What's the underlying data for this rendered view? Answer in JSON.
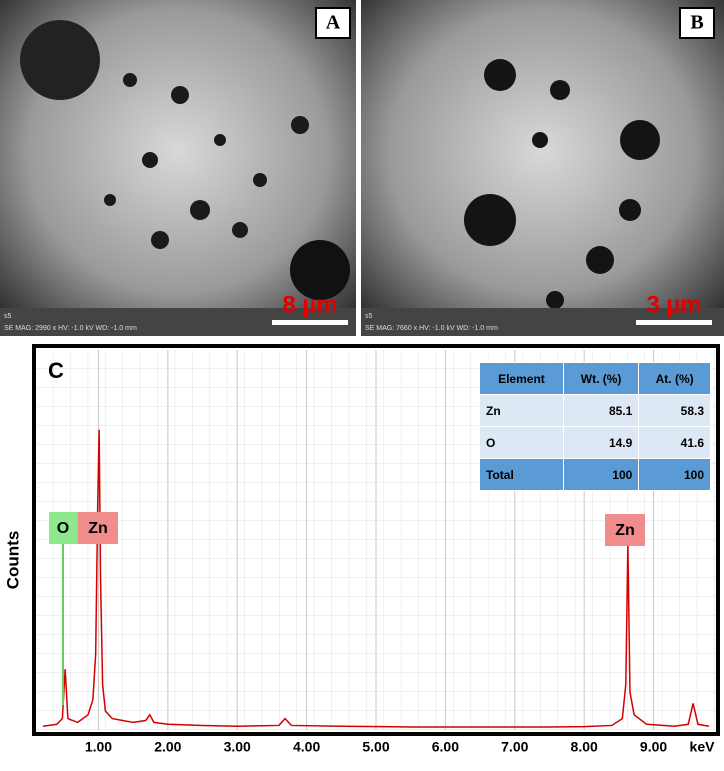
{
  "images": [
    {
      "label": "A",
      "scale": "8 µm",
      "sample": "s5",
      "info": "SE  MAG: 2990 x  HV: -1.0 kV  WD: -1.0 mm"
    },
    {
      "label": "B",
      "scale": "3 µm",
      "sample": "s5",
      "info": "SE  MAG: 7660 x  HV: -1.0 kV  WD: -1.0 mm"
    }
  ],
  "chart_data": {
    "type": "line",
    "panel": "C",
    "x_label": "keV",
    "y_label": "Counts",
    "x": [
      0.2,
      0.4,
      0.48,
      0.52,
      0.56,
      0.7,
      0.85,
      0.92,
      0.96,
      0.99,
      1.01,
      1.03,
      1.06,
      1.1,
      1.2,
      1.5,
      1.68,
      1.74,
      1.8,
      2.0,
      2.5,
      3.0,
      3.6,
      3.69,
      3.78,
      4.5,
      5.5,
      6.5,
      7.5,
      8.0,
      8.4,
      8.55,
      8.6,
      8.63,
      8.66,
      8.72,
      8.9,
      9.3,
      9.5,
      9.57,
      9.64,
      9.8
    ],
    "series": [
      {
        "color": "#d40000",
        "values": [
          1,
          1.5,
          3,
          16,
          3,
          2,
          4,
          8,
          20,
          60,
          79,
          40,
          12,
          5,
          3,
          2,
          2.5,
          4,
          2,
          1.5,
          1.2,
          1,
          1.2,
          3,
          1.2,
          1,
          0.8,
          0.8,
          0.8,
          0.9,
          1.2,
          3,
          12,
          49,
          10,
          4,
          1.5,
          1,
          1.5,
          7,
          1.5,
          1
        ]
      }
    ],
    "xlim": [
      0.1,
      9.9
    ],
    "ylim": [
      0,
      100
    ],
    "xticks": [
      {
        "value": 1,
        "label": "1.00"
      },
      {
        "value": 2,
        "label": "2.00"
      },
      {
        "value": 3,
        "label": "3.00"
      },
      {
        "value": 4,
        "label": "4.00"
      },
      {
        "value": 5,
        "label": "5.00"
      },
      {
        "value": 6,
        "label": "6.00"
      },
      {
        "value": 7,
        "label": "7.00"
      },
      {
        "value": 8,
        "label": "8.00"
      },
      {
        "value": 9,
        "label": "9.00"
      }
    ],
    "grid": true,
    "annotations": [
      "O",
      "Zn",
      "Zn"
    ],
    "table": {
      "header": [
        "Element",
        "Wt. (%)",
        "At. (%)"
      ],
      "rows": [
        [
          "Zn",
          85.1,
          58.3
        ],
        [
          "O",
          14.9,
          41.6
        ],
        [
          "Total",
          100,
          100
        ]
      ]
    }
  }
}
